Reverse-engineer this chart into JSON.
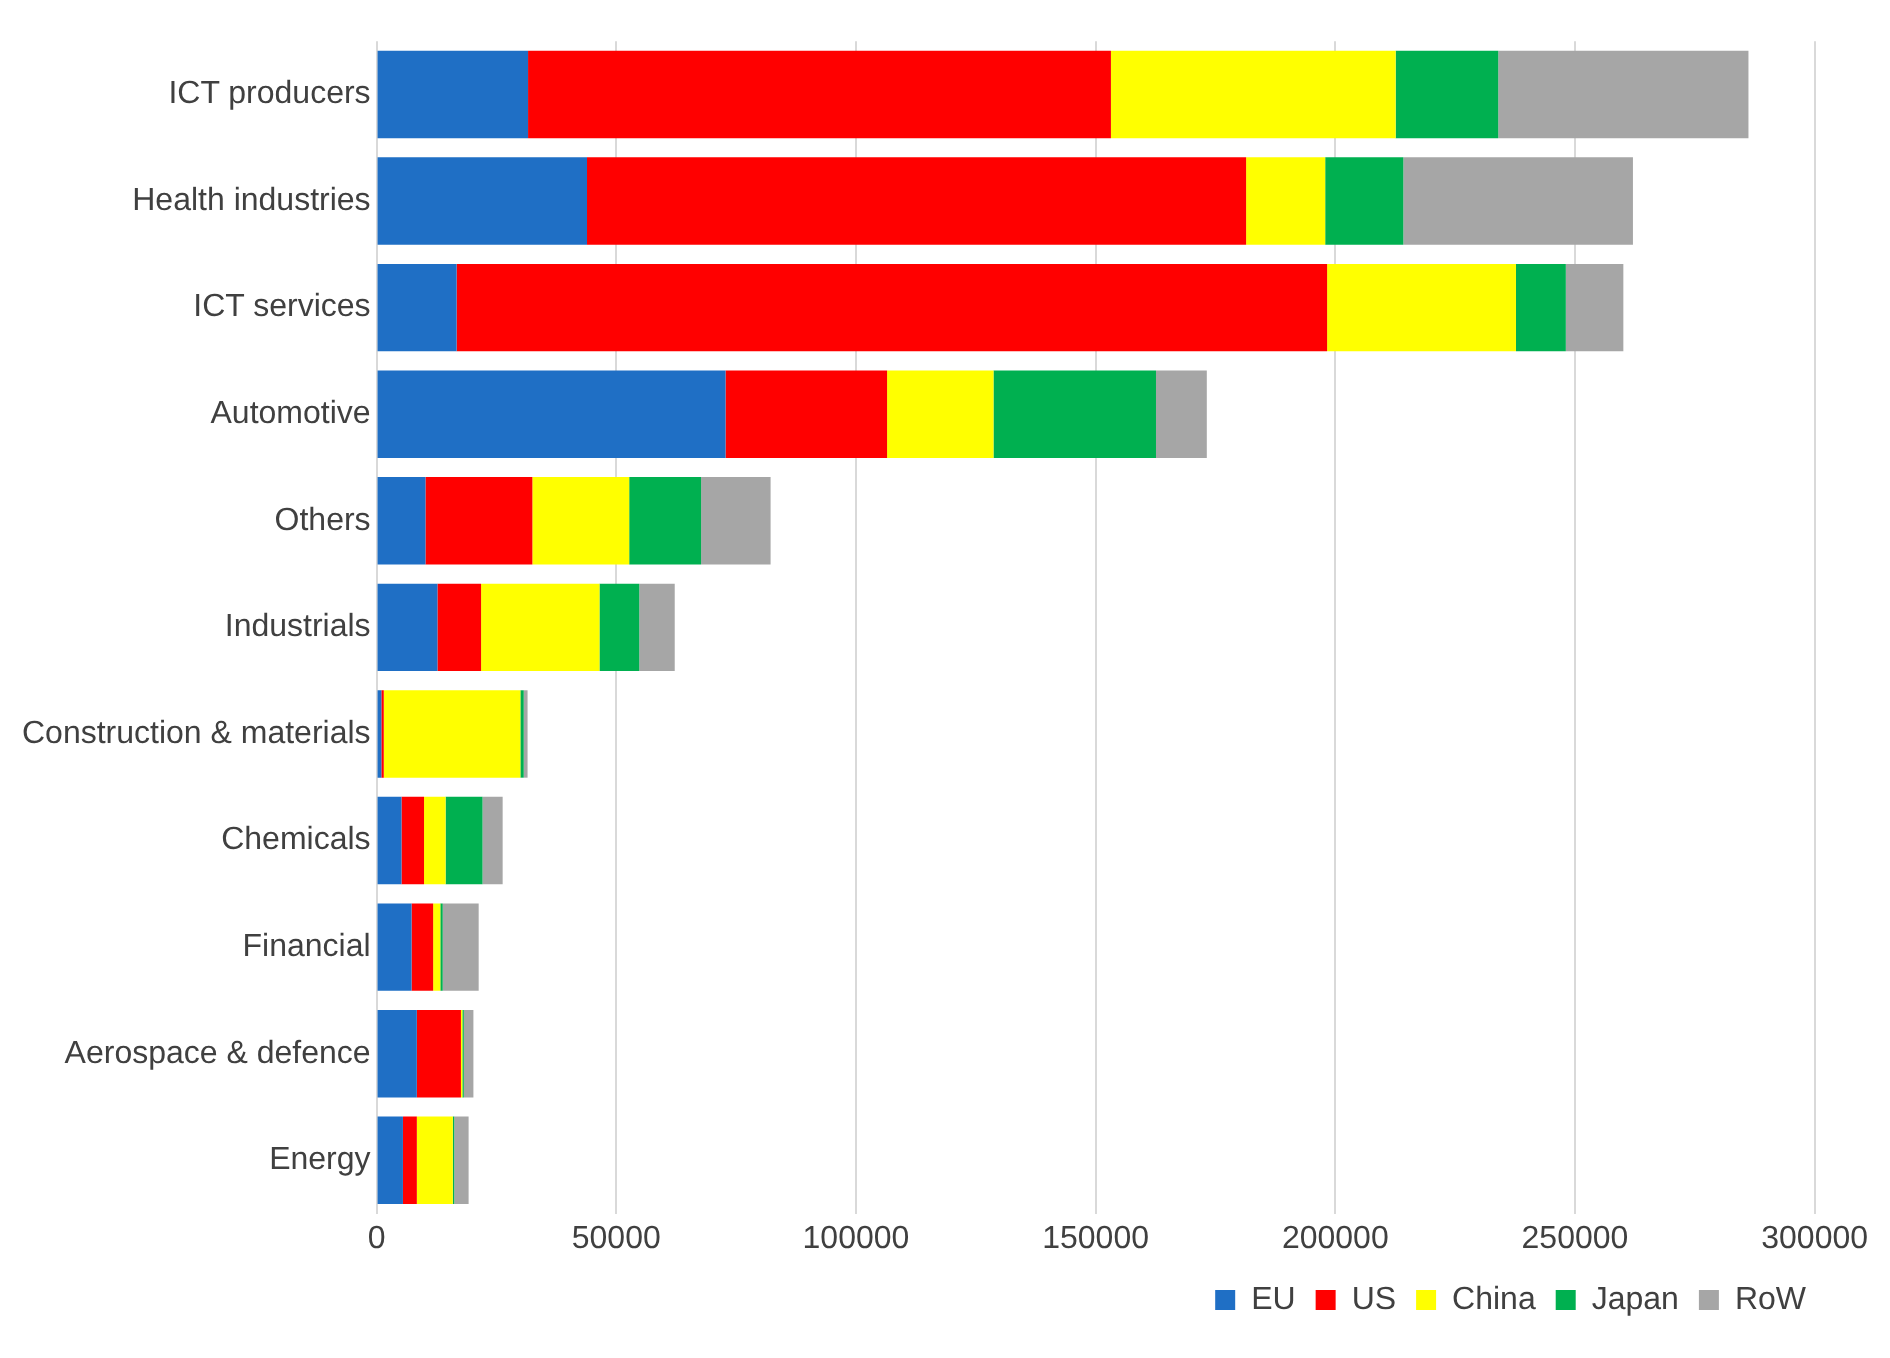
{
  "chart_data": {
    "type": "bar",
    "orientation": "horizontal",
    "stacked": true,
    "categories": [
      "ICT producers",
      "Health industries",
      "ICT services",
      "Automotive",
      "Others",
      "Industrials",
      "Construction & materials",
      "Chemicals",
      "Financial",
      "Aerospace & defence",
      "Energy"
    ],
    "series": [
      {
        "name": "EU",
        "color": "#1f6fc5",
        "values": [
          31600,
          43900,
          16700,
          72800,
          10200,
          12700,
          1000,
          5200,
          7300,
          8400,
          5500
        ]
      },
      {
        "name": "US",
        "color": "#ff0000",
        "values": [
          121600,
          137500,
          181600,
          33700,
          22300,
          9100,
          500,
          4700,
          4500,
          9200,
          2900
        ]
      },
      {
        "name": "China",
        "color": "#ffff00",
        "values": [
          59400,
          16500,
          39400,
          22200,
          20200,
          24700,
          28500,
          4500,
          1500,
          300,
          7500
        ]
      },
      {
        "name": "Japan",
        "color": "#00b050",
        "values": [
          21400,
          16300,
          10400,
          33900,
          15000,
          8300,
          700,
          7700,
          500,
          300,
          300
        ]
      },
      {
        "name": "RoW",
        "color": "#a6a6a6",
        "values": [
          52200,
          47900,
          12000,
          10600,
          14500,
          7400,
          800,
          4200,
          7500,
          2000,
          3000
        ]
      }
    ],
    "xlim": [
      0,
      300000
    ],
    "xticks": [
      0,
      50000,
      100000,
      150000,
      200000,
      250000,
      300000
    ],
    "grid": "x",
    "legend": "bottom right"
  }
}
